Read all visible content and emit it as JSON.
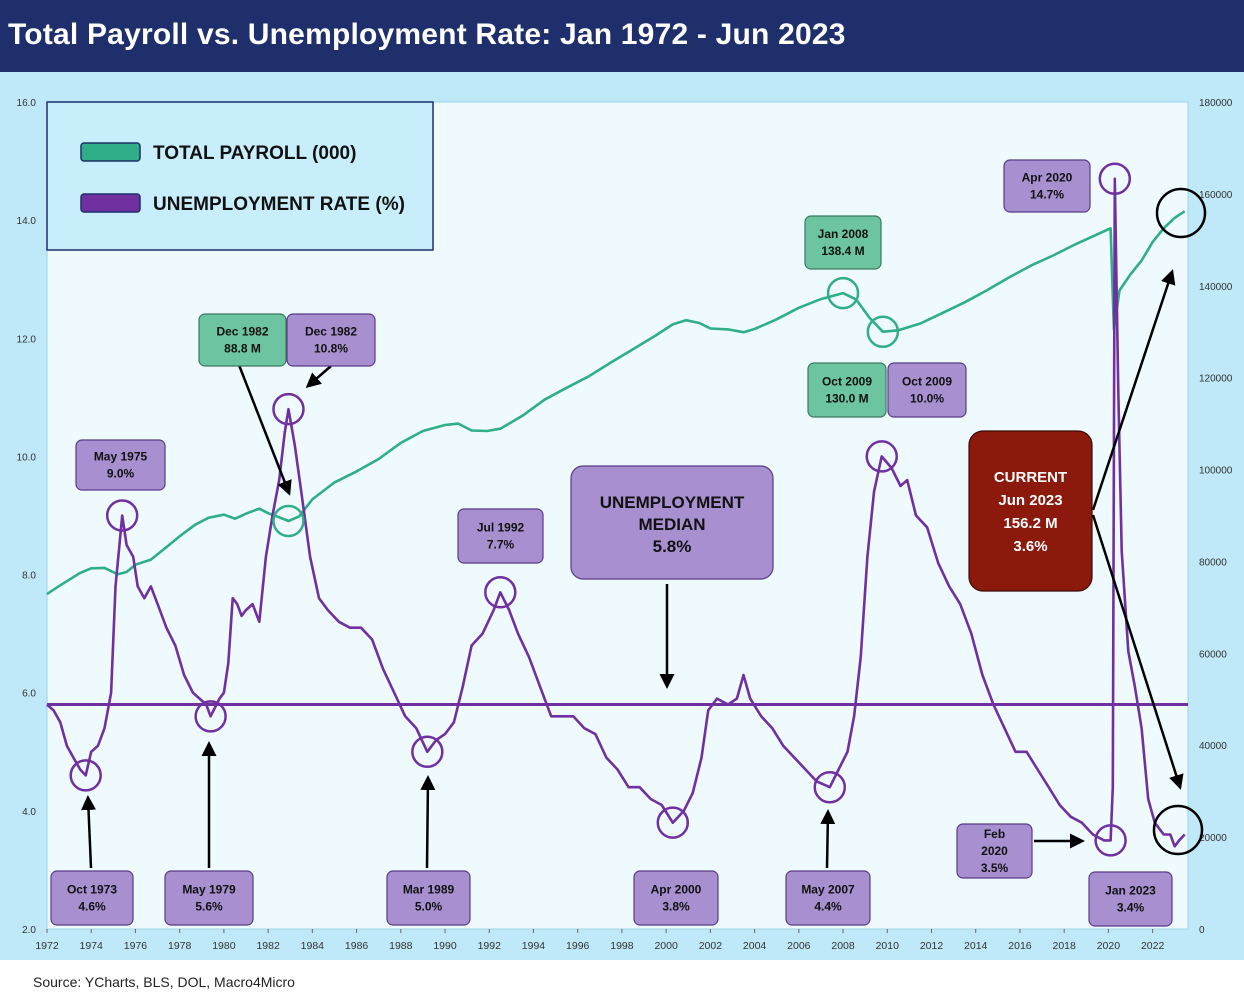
{
  "title": "Total Payroll vs. Unemployment Rate: Jan 1972 - Jun 2023",
  "source": "Source: YCharts, BLS, DOL, Macro4Micro",
  "colors": {
    "header": "#1f2f6c",
    "payroll": "#2fae87",
    "unemployment": "#7030a0",
    "panel": "#bfe8f8",
    "plot": "#eefafd",
    "current_box": "#8b1a0c"
  },
  "chart_data": {
    "type": "line",
    "x_ticks": [
      "1972",
      "1974",
      "1976",
      "1978",
      "1980",
      "1982",
      "1984",
      "1986",
      "1988",
      "1990",
      "1992",
      "1994",
      "1996",
      "1998",
      "2000",
      "2002",
      "2004",
      "2006",
      "2008",
      "2010",
      "2012",
      "2014",
      "2016",
      "2018",
      "2020",
      "2022"
    ],
    "y_left_ticks": [
      "2.0",
      "4.0",
      "6.0",
      "8.0",
      "10.0",
      "12.0",
      "14.0",
      "16.0"
    ],
    "y_right_ticks": [
      "0",
      "20000",
      "40000",
      "60000",
      "80000",
      "100000",
      "120000",
      "140000",
      "160000",
      "180000"
    ],
    "ylim_left": [
      2,
      16
    ],
    "ylim_right": [
      0,
      180000
    ],
    "xlim": [
      1972,
      2023.6
    ],
    "legend": {
      "position": "top-left",
      "items": [
        "TOTAL PAYROLL (000)",
        "UNEMPLOYMENT RATE (%)"
      ]
    },
    "median": {
      "value": 5.8,
      "label_lines": [
        "UNEMPLOYMENT",
        "MEDIAN",
        "5.8%"
      ]
    },
    "series": [
      {
        "name": "TOTAL PAYROLL (000)",
        "axis": "right",
        "points": [
          [
            1972.0,
            72900
          ],
          [
            1972.5,
            74500
          ],
          [
            1973.0,
            76000
          ],
          [
            1973.5,
            77500
          ],
          [
            1974.0,
            78500
          ],
          [
            1974.6,
            78600
          ],
          [
            1975.2,
            77200
          ],
          [
            1975.6,
            77700
          ],
          [
            1976.0,
            79300
          ],
          [
            1976.7,
            80400
          ],
          [
            1977.5,
            83500
          ],
          [
            1978.0,
            85500
          ],
          [
            1978.7,
            88000
          ],
          [
            1979.3,
            89500
          ],
          [
            1980.0,
            90200
          ],
          [
            1980.5,
            89300
          ],
          [
            1981.0,
            90400
          ],
          [
            1981.6,
            91500
          ],
          [
            1982.0,
            90500
          ],
          [
            1982.5,
            89600
          ],
          [
            1982.92,
            88800
          ],
          [
            1983.4,
            89800
          ],
          [
            1984.0,
            93500
          ],
          [
            1985.0,
            97200
          ],
          [
            1986.0,
            99600
          ],
          [
            1987.0,
            102300
          ],
          [
            1988.0,
            105800
          ],
          [
            1989.0,
            108400
          ],
          [
            1990.0,
            109700
          ],
          [
            1990.6,
            110000
          ],
          [
            1991.2,
            108500
          ],
          [
            1991.9,
            108400
          ],
          [
            1992.5,
            108900
          ],
          [
            1993.5,
            111700
          ],
          [
            1994.5,
            115200
          ],
          [
            1995.5,
            117800
          ],
          [
            1996.5,
            120300
          ],
          [
            1997.5,
            123300
          ],
          [
            1998.5,
            126200
          ],
          [
            1999.5,
            129100
          ],
          [
            2000.3,
            131600
          ],
          [
            2000.9,
            132500
          ],
          [
            2001.5,
            131900
          ],
          [
            2002.0,
            130700
          ],
          [
            2002.8,
            130500
          ],
          [
            2003.5,
            129900
          ],
          [
            2004.0,
            130600
          ],
          [
            2005.0,
            132700
          ],
          [
            2006.0,
            135200
          ],
          [
            2007.0,
            137100
          ],
          [
            2008.0,
            138400
          ],
          [
            2008.6,
            137000
          ],
          [
            2009.2,
            133000
          ],
          [
            2009.8,
            130000
          ],
          [
            2010.5,
            130300
          ],
          [
            2011.5,
            131800
          ],
          [
            2012.5,
            134100
          ],
          [
            2013.5,
            136400
          ],
          [
            2014.5,
            139000
          ],
          [
            2015.5,
            141800
          ],
          [
            2016.5,
            144400
          ],
          [
            2017.5,
            146600
          ],
          [
            2018.5,
            149000
          ],
          [
            2019.5,
            151200
          ],
          [
            2020.1,
            152500
          ],
          [
            2020.25,
            130500
          ],
          [
            2020.5,
            139000
          ],
          [
            2021.0,
            142500
          ],
          [
            2021.5,
            145500
          ],
          [
            2022.0,
            149500
          ],
          [
            2022.5,
            152500
          ],
          [
            2023.0,
            154800
          ],
          [
            2023.45,
            156200
          ]
        ]
      },
      {
        "name": "UNEMPLOYMENT RATE (%)",
        "axis": "left",
        "points": [
          [
            1972.0,
            5.8
          ],
          [
            1972.3,
            5.7
          ],
          [
            1972.6,
            5.5
          ],
          [
            1972.9,
            5.1
          ],
          [
            1973.2,
            4.9
          ],
          [
            1973.5,
            4.7
          ],
          [
            1973.75,
            4.6
          ],
          [
            1974.0,
            5.0
          ],
          [
            1974.3,
            5.1
          ],
          [
            1974.6,
            5.4
          ],
          [
            1974.9,
            6.0
          ],
          [
            1975.1,
            7.8
          ],
          [
            1975.3,
            8.6
          ],
          [
            1975.4,
            9.0
          ],
          [
            1975.6,
            8.5
          ],
          [
            1975.9,
            8.3
          ],
          [
            1976.1,
            7.8
          ],
          [
            1976.4,
            7.6
          ],
          [
            1976.7,
            7.8
          ],
          [
            1977.0,
            7.5
          ],
          [
            1977.4,
            7.1
          ],
          [
            1977.8,
            6.8
          ],
          [
            1978.2,
            6.3
          ],
          [
            1978.6,
            6.0
          ],
          [
            1978.9,
            5.9
          ],
          [
            1979.2,
            5.8
          ],
          [
            1979.4,
            5.6
          ],
          [
            1979.8,
            5.9
          ],
          [
            1980.0,
            6.0
          ],
          [
            1980.2,
            6.5
          ],
          [
            1980.4,
            7.6
          ],
          [
            1980.6,
            7.5
          ],
          [
            1980.8,
            7.3
          ],
          [
            1981.0,
            7.4
          ],
          [
            1981.3,
            7.5
          ],
          [
            1981.6,
            7.2
          ],
          [
            1981.9,
            8.3
          ],
          [
            1982.2,
            9.0
          ],
          [
            1982.5,
            9.6
          ],
          [
            1982.75,
            10.4
          ],
          [
            1982.92,
            10.8
          ],
          [
            1983.2,
            10.2
          ],
          [
            1983.5,
            9.4
          ],
          [
            1983.9,
            8.3
          ],
          [
            1984.3,
            7.6
          ],
          [
            1984.7,
            7.4
          ],
          [
            1985.2,
            7.2
          ],
          [
            1985.7,
            7.1
          ],
          [
            1986.2,
            7.1
          ],
          [
            1986.7,
            6.9
          ],
          [
            1987.2,
            6.4
          ],
          [
            1987.7,
            6.0
          ],
          [
            1988.2,
            5.6
          ],
          [
            1988.7,
            5.4
          ],
          [
            1989.2,
            5.0
          ],
          [
            1989.6,
            5.2
          ],
          [
            1990.0,
            5.3
          ],
          [
            1990.4,
            5.5
          ],
          [
            1990.8,
            6.1
          ],
          [
            1991.2,
            6.8
          ],
          [
            1991.7,
            7.0
          ],
          [
            1992.2,
            7.4
          ],
          [
            1992.5,
            7.7
          ],
          [
            1992.9,
            7.4
          ],
          [
            1993.3,
            7.0
          ],
          [
            1993.8,
            6.6
          ],
          [
            1994.3,
            6.1
          ],
          [
            1994.8,
            5.6
          ],
          [
            1995.3,
            5.6
          ],
          [
            1995.8,
            5.6
          ],
          [
            1996.3,
            5.4
          ],
          [
            1996.8,
            5.3
          ],
          [
            1997.3,
            4.9
          ],
          [
            1997.8,
            4.7
          ],
          [
            1998.3,
            4.4
          ],
          [
            1998.8,
            4.4
          ],
          [
            1999.3,
            4.2
          ],
          [
            1999.8,
            4.1
          ],
          [
            2000.3,
            3.8
          ],
          [
            2000.8,
            4.0
          ],
          [
            2001.2,
            4.3
          ],
          [
            2001.6,
            4.9
          ],
          [
            2001.9,
            5.7
          ],
          [
            2002.3,
            5.9
          ],
          [
            2002.8,
            5.8
          ],
          [
            2003.2,
            5.9
          ],
          [
            2003.5,
            6.3
          ],
          [
            2003.8,
            5.9
          ],
          [
            2004.3,
            5.6
          ],
          [
            2004.8,
            5.4
          ],
          [
            2005.3,
            5.1
          ],
          [
            2005.8,
            4.9
          ],
          [
            2006.3,
            4.7
          ],
          [
            2006.8,
            4.5
          ],
          [
            2007.4,
            4.4
          ],
          [
            2007.8,
            4.7
          ],
          [
            2008.2,
            5.0
          ],
          [
            2008.5,
            5.6
          ],
          [
            2008.8,
            6.6
          ],
          [
            2009.1,
            8.3
          ],
          [
            2009.4,
            9.4
          ],
          [
            2009.75,
            10.0
          ],
          [
            2010.2,
            9.8
          ],
          [
            2010.6,
            9.5
          ],
          [
            2010.9,
            9.6
          ],
          [
            2011.3,
            9.0
          ],
          [
            2011.8,
            8.8
          ],
          [
            2012.3,
            8.2
          ],
          [
            2012.8,
            7.8
          ],
          [
            2013.3,
            7.5
          ],
          [
            2013.8,
            7.0
          ],
          [
            2014.3,
            6.3
          ],
          [
            2014.8,
            5.8
          ],
          [
            2015.3,
            5.4
          ],
          [
            2015.8,
            5.0
          ],
          [
            2016.3,
            5.0
          ],
          [
            2016.8,
            4.7
          ],
          [
            2017.3,
            4.4
          ],
          [
            2017.8,
            4.1
          ],
          [
            2018.3,
            3.9
          ],
          [
            2018.8,
            3.8
          ],
          [
            2019.3,
            3.6
          ],
          [
            2019.8,
            3.5
          ],
          [
            2020.1,
            3.5
          ],
          [
            2020.2,
            4.4
          ],
          [
            2020.29,
            14.7
          ],
          [
            2020.45,
            11.1
          ],
          [
            2020.6,
            8.4
          ],
          [
            2020.9,
            6.7
          ],
          [
            2021.2,
            6.1
          ],
          [
            2021.5,
            5.4
          ],
          [
            2021.8,
            4.2
          ],
          [
            2022.1,
            3.8
          ],
          [
            2022.5,
            3.6
          ],
          [
            2022.8,
            3.6
          ],
          [
            2023.0,
            3.4
          ],
          [
            2023.2,
            3.5
          ],
          [
            2023.45,
            3.6
          ]
        ]
      }
    ],
    "annotations": [
      {
        "lines": [
          "Oct 1973",
          "4.6%"
        ],
        "style": "purple"
      },
      {
        "lines": [
          "May 1975",
          "9.0%"
        ],
        "style": "purple"
      },
      {
        "lines": [
          "May 1979",
          "5.6%"
        ],
        "style": "purple"
      },
      {
        "lines": [
          "Dec 1982",
          "88.8 M"
        ],
        "style": "green"
      },
      {
        "lines": [
          "Dec 1982",
          "10.8%"
        ],
        "style": "purple"
      },
      {
        "lines": [
          "Mar 1989",
          "5.0%"
        ],
        "style": "purple"
      },
      {
        "lines": [
          "Jul 1992",
          "7.7%"
        ],
        "style": "purple"
      },
      {
        "lines": [
          "Apr 2000",
          "3.8%"
        ],
        "style": "purple"
      },
      {
        "lines": [
          "May 2007",
          "4.4%"
        ],
        "style": "purple"
      },
      {
        "lines": [
          "Jan 2008",
          "138.4 M"
        ],
        "style": "green"
      },
      {
        "lines": [
          "Oct 2009",
          "130.0 M"
        ],
        "style": "green"
      },
      {
        "lines": [
          "Oct 2009",
          "10.0%"
        ],
        "style": "purple"
      },
      {
        "lines": [
          "Apr 2020",
          "14.7%"
        ],
        "style": "purple"
      },
      {
        "lines": [
          "Feb",
          "2020",
          "3.5%"
        ],
        "style": "purple"
      },
      {
        "lines": [
          "Jan 2023",
          "3.4%"
        ],
        "style": "purple"
      },
      {
        "lines": [
          "CURRENT",
          "Jun 2023",
          "156.2 M",
          "3.6%"
        ],
        "style": "current"
      }
    ]
  }
}
